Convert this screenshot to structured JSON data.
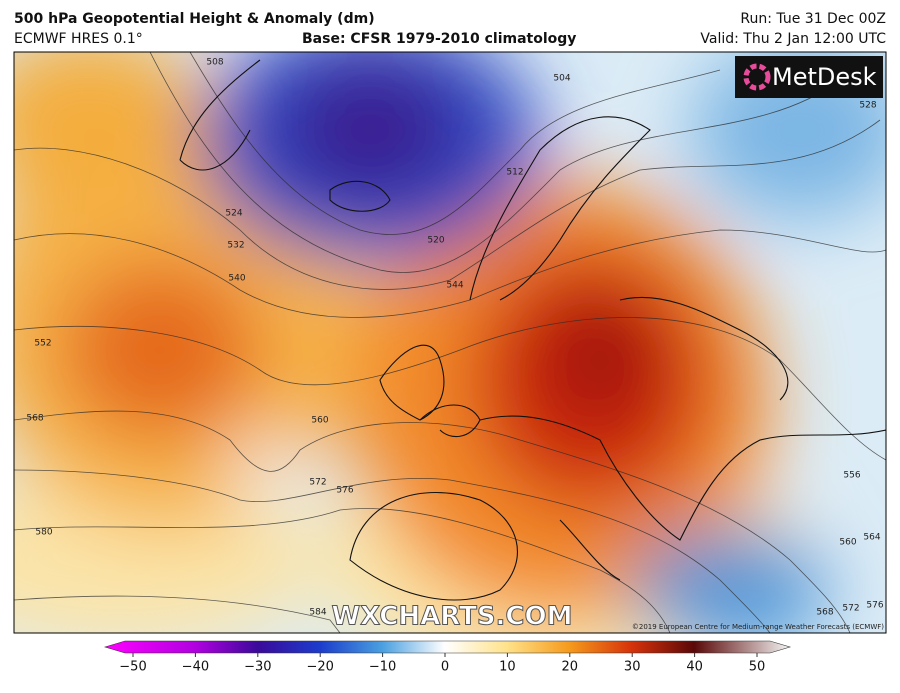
{
  "header": {
    "title": "500 hPa Geopotential Height & Anomaly (dm)",
    "model": "ECMWF HRES 0.1°",
    "base": "Base: CFSR 1979-2010 climatology",
    "run": "Run: Tue 31 Dec 00Z",
    "valid": "Valid: Thu 2 Jan 12:00 UTC"
  },
  "map": {
    "logo": "MetDesk",
    "watermark": "WXCHARTS.COM",
    "copyright": "©2019 European Centre for Medium-range Weather Forecasts (ECMWF)",
    "contour_labels": [
      "508",
      "504",
      "512",
      "520",
      "524",
      "532",
      "540",
      "544",
      "552",
      "560",
      "568",
      "572",
      "576",
      "580",
      "584",
      "556",
      "564",
      "560",
      "568",
      "572",
      "576",
      "528"
    ]
  },
  "colorbar": {
    "range": [
      -50,
      50
    ],
    "ticks": [
      {
        "value": -50,
        "label": "−50"
      },
      {
        "value": -40,
        "label": "−40"
      },
      {
        "value": -30,
        "label": "−30"
      },
      {
        "value": -20,
        "label": "−20"
      },
      {
        "value": -10,
        "label": "−10"
      },
      0,
      10,
      20,
      30,
      40,
      50
    ]
  }
}
